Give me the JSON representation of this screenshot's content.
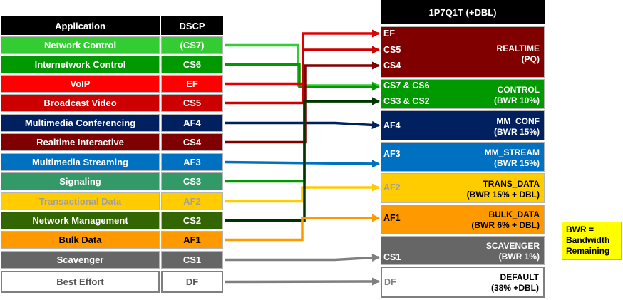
{
  "headers": {
    "application": "Application",
    "dscp": "DSCP",
    "queuing": "1P7Q1T (+DBL)"
  },
  "rows": [
    {
      "application": "Network Control",
      "dscp": "(CS7)",
      "bg": "#33cc33",
      "fg": "#ffffff",
      "line": "#33cc33"
    },
    {
      "application": "Internetwork Control",
      "dscp": "CS6",
      "bg": "#009900",
      "fg": "#ffffff",
      "line": "#009900"
    },
    {
      "application": "VoIP",
      "dscp": "EF",
      "bg": "#ff0000",
      "fg": "#ffffff",
      "line": "#e00000"
    },
    {
      "application": "Broadcast Video",
      "dscp": "CS5",
      "bg": "#cc0000",
      "fg": "#ffffff",
      "line": "#cc0000"
    },
    {
      "application": "Multimedia Conferencing",
      "dscp": "AF4",
      "bg": "#002060",
      "fg": "#ffffff",
      "line": "#002060"
    },
    {
      "application": "Realtime Interactive",
      "dscp": "CS4",
      "bg": "#7f0000",
      "fg": "#ffffff",
      "line": "#7f0000"
    },
    {
      "application": "Multimedia Streaming",
      "dscp": "AF3",
      "bg": "#0070c0",
      "fg": "#ffffff",
      "line": "#0070c0"
    },
    {
      "application": "Signaling",
      "dscp": "CS3",
      "bg": "#339966",
      "fg": "#ffffff",
      "line": "#009900"
    },
    {
      "application": "Transactional Data",
      "dscp": "AF2",
      "bg": "#ffcc00",
      "fg": "#a0a0a0",
      "line": "#ffcc00"
    },
    {
      "application": "Network Management",
      "dscp": "CS2",
      "bg": "#336600",
      "fg": "#ffffff",
      "line": "#003300"
    },
    {
      "application": "Bulk Data",
      "dscp": "AF1",
      "bg": "#ff9900",
      "fg": "#000000",
      "line": "#ff9900"
    },
    {
      "application": "Scavenger",
      "dscp": "CS1",
      "bg": "#666666",
      "fg": "#ffffff",
      "line": "#7f7f7f"
    },
    {
      "application": "Best Effort",
      "dscp": "DF",
      "bg": "#ffffff",
      "fg": "#555555",
      "line": "#7f7f7f"
    }
  ],
  "queues": [
    {
      "tags": [
        "EF",
        "CS5",
        "CS4"
      ],
      "name": "REALTIME",
      "sub": "(PQ)",
      "bg": "#800000",
      "fg": "#ffffff",
      "tagfg": "#ffffff"
    },
    {
      "tags": [
        "CS7 & CS6",
        "CS3 & CS2"
      ],
      "name": "CONTROL",
      "sub": "(BWR 10%)",
      "bg": "#009900",
      "fg": "#ffffff",
      "tagfg": "#ffffff"
    },
    {
      "tags": [
        "AF4"
      ],
      "name": "MM_CONF",
      "sub": "(BWR 15%)",
      "bg": "#002060",
      "fg": "#ffffff",
      "tagfg": "#ffffff"
    },
    {
      "tags": [
        "AF3"
      ],
      "name": "MM_STREAM",
      "sub": "(BWR 15%)",
      "bg": "#0070c0",
      "fg": "#ffffff",
      "tagfg": "#ffffff"
    },
    {
      "tags": [
        "AF2"
      ],
      "name": "TRANS_DATA",
      "sub": "(BWR 15% + DBL)",
      "bg": "#ffcc00",
      "fg": "#000000",
      "tagfg": "#a0a0a0"
    },
    {
      "tags": [
        "AF1"
      ],
      "name": "BULK_DATA",
      "sub": "(BWR 6% + DBL)",
      "bg": "#ff9900",
      "fg": "#000000",
      "tagfg": "#000000"
    },
    {
      "tags": [
        "CS1"
      ],
      "name": "SCAVENGER",
      "sub": "(BWR 1%)",
      "bg": "#666666",
      "fg": "#ffffff",
      "tagfg": "#ffffff"
    },
    {
      "tags": [
        "DF"
      ],
      "name": "DEFAULT",
      "sub": "(38% +DBL)",
      "bg": "#ffffff",
      "fg": "#000000",
      "tagfg": "#808080"
    }
  ],
  "note": {
    "lines": [
      "BWR =",
      "Bandwidth",
      "Remaining"
    ],
    "bg": "#ffff00"
  }
}
